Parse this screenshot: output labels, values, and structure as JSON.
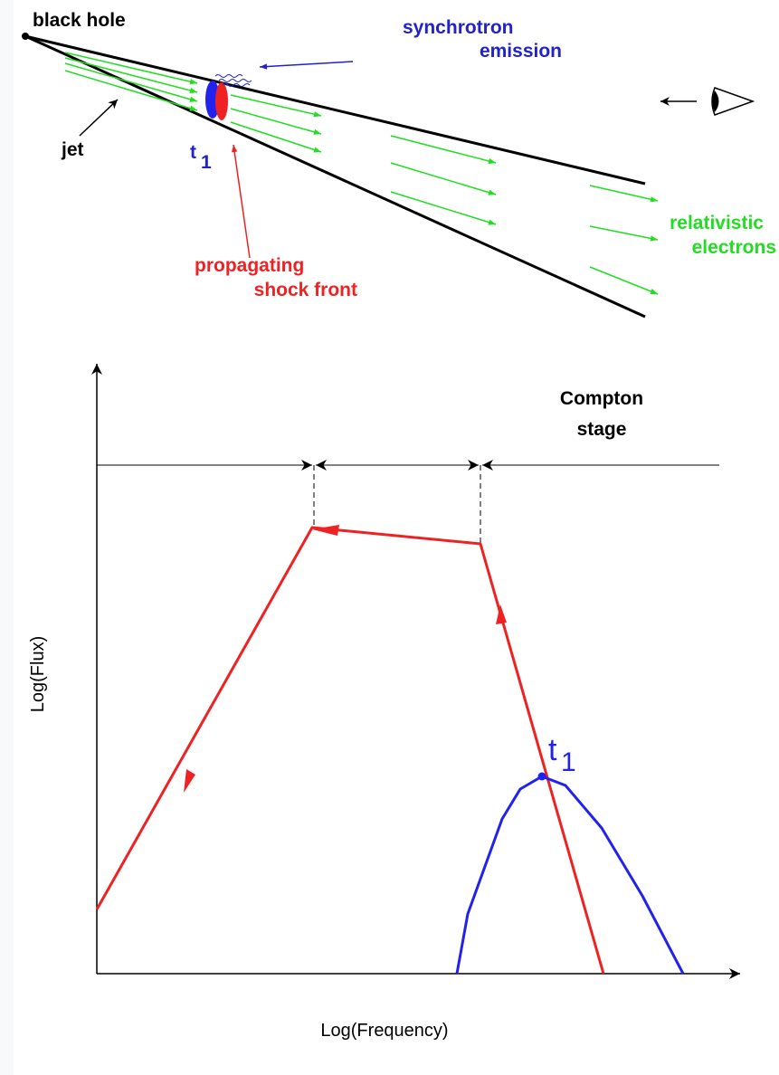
{
  "top": {
    "black_hole": "black hole",
    "synchrotron": [
      "synchrotron",
      "emission"
    ],
    "jet": "jet",
    "t1": {
      "t": "t",
      "sub": "1"
    },
    "shock": [
      "propagating",
      "shock front"
    ],
    "electrons": [
      "relativistic",
      "electrons"
    ]
  },
  "bottom": {
    "compton": [
      "Compton",
      "stage"
    ],
    "t1": {
      "t": "t",
      "sub": "1"
    },
    "y_axis": "Log(Flux)",
    "x_axis": "Log(Frequency)"
  }
}
